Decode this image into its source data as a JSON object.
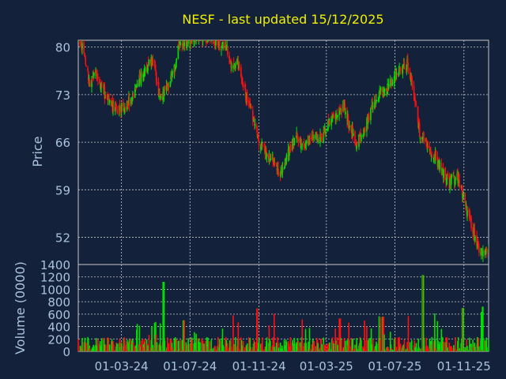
{
  "colors": {
    "background": "#13213a",
    "plot_background": "#13213a",
    "title": "#f0f000",
    "axis_text": "#a9c3df",
    "grid": "#c8c8c8",
    "up": "#00e000",
    "down": "#ff1010"
  },
  "chart_data": [
    {
      "type": "candlestick",
      "title": "NESF - last updated 15/12/2025",
      "ylabel": "Price",
      "ylim": [
        48,
        81
      ],
      "yticks": [
        52,
        59,
        66,
        73,
        80
      ],
      "grid": true,
      "x_range": [
        "2023-12-15",
        "2025-12-15"
      ],
      "trend": [
        [
          "2023-12-15",
          80.5
        ],
        [
          "2023-12-22",
          80.0
        ],
        [
          "2024-01-04",
          74.5
        ],
        [
          "2024-01-15",
          76.0
        ],
        [
          "2024-01-26",
          74.0
        ],
        [
          "2024-02-08",
          71.5
        ],
        [
          "2024-02-20",
          71.0
        ],
        [
          "2024-03-04",
          71.0
        ],
        [
          "2024-03-19",
          72.5
        ],
        [
          "2024-04-01",
          75.0
        ],
        [
          "2024-04-15",
          77.0
        ],
        [
          "2024-04-25",
          78.5
        ],
        [
          "2024-05-08",
          72.5
        ],
        [
          "2024-05-22",
          74.0
        ],
        [
          "2024-06-04",
          77.0
        ],
        [
          "2024-06-11",
          80.5
        ],
        [
          "2024-06-26",
          81.0
        ],
        [
          "2024-07-09",
          81.5
        ],
        [
          "2024-07-25",
          81.5
        ],
        [
          "2024-08-09",
          81.0
        ],
        [
          "2024-08-23",
          80.5
        ],
        [
          "2024-09-02",
          80.5
        ],
        [
          "2024-09-13",
          77.0
        ],
        [
          "2024-09-26",
          77.5
        ],
        [
          "2024-10-08",
          73.0
        ],
        [
          "2024-10-21",
          70.0
        ],
        [
          "2024-11-01",
          66.0
        ],
        [
          "2024-11-15",
          64.0
        ],
        [
          "2024-11-27",
          63.0
        ],
        [
          "2024-12-10",
          61.5
        ],
        [
          "2024-12-20",
          64.0
        ],
        [
          "2025-01-07",
          67.0
        ],
        [
          "2025-01-20",
          65.0
        ],
        [
          "2025-02-05",
          67.0
        ],
        [
          "2025-02-18",
          66.5
        ],
        [
          "2025-03-04",
          68.5
        ],
        [
          "2025-03-18",
          70.0
        ],
        [
          "2025-04-01",
          71.5
        ],
        [
          "2025-04-11",
          68.5
        ],
        [
          "2025-04-23",
          66.0
        ],
        [
          "2025-05-07",
          67.5
        ],
        [
          "2025-05-22",
          71.5
        ],
        [
          "2025-06-04",
          73.5
        ],
        [
          "2025-06-18",
          74.0
        ],
        [
          "2025-07-02",
          76.0
        ],
        [
          "2025-07-14",
          76.5
        ],
        [
          "2025-07-23",
          77.5
        ],
        [
          "2025-08-04",
          73.0
        ],
        [
          "2025-08-15",
          67.0
        ],
        [
          "2025-08-29",
          65.0
        ],
        [
          "2025-09-11",
          64.0
        ],
        [
          "2025-09-24",
          61.5
        ],
        [
          "2025-10-06",
          60.0
        ],
        [
          "2025-10-20",
          61.0
        ],
        [
          "2025-11-03",
          57.0
        ],
        [
          "2025-11-17",
          53.0
        ],
        [
          "2025-11-25",
          51.0
        ],
        [
          "2025-12-03",
          49.5
        ],
        [
          "2025-12-10",
          50.5
        ],
        [
          "2025-12-15",
          50.0
        ]
      ]
    },
    {
      "type": "bar",
      "ylabel": "Volume (0000)",
      "ylim": [
        0,
        1400
      ],
      "yticks": [
        0,
        200,
        400,
        600,
        800,
        1000,
        1200,
        1400
      ],
      "grid": true,
      "xticks": [
        "01-03-24",
        "01-07-24",
        "01-11-24",
        "01-03-25",
        "01-07-25",
        "01-11-25"
      ],
      "xtick_dates": [
        "2024-03-01",
        "2024-07-01",
        "2024-11-01",
        "2025-03-01",
        "2025-07-01",
        "2025-11-01"
      ],
      "base_level": 150,
      "spikes": [
        [
          "2024-05-15",
          1120
        ],
        [
          "2024-06-20",
          500
        ],
        [
          "2024-10-28",
          690
        ],
        [
          "2025-03-25",
          530
        ],
        [
          "2025-06-10",
          560
        ],
        [
          "2025-08-20",
          1230
        ],
        [
          "2025-10-30",
          700
        ],
        [
          "2025-12-05",
          720
        ]
      ]
    }
  ]
}
